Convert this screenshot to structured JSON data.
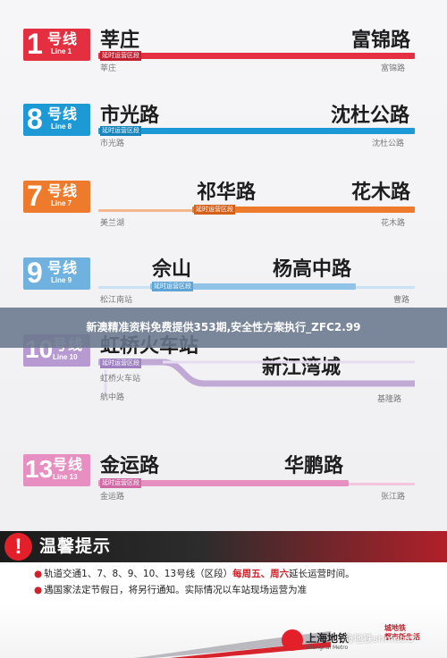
{
  "banner": "新澳精准资料免费提供353期,安全性方案执行_ZFC2.99",
  "lines": [
    {
      "id": "l1",
      "num": "1",
      "hx": "号线",
      "en": "Line 1",
      "color": "#e32f3f",
      "from_big": "莘庄",
      "to_big": "富锦路",
      "tag": "延时运营区段",
      "from_small": "莘庄",
      "to_small": "富锦路"
    },
    {
      "id": "l8",
      "num": "8",
      "hx": "号线",
      "en": "Line 8",
      "color": "#1d9ad6",
      "from_big": "市光路",
      "to_big": "沈杜公路",
      "tag": "延时运营区段",
      "from_small": "市光路",
      "to_small": "沈杜公路"
    },
    {
      "id": "l7",
      "num": "7",
      "hx": "号线",
      "en": "Line 7",
      "color": "#ee7a2c",
      "from_big": "祁华路",
      "to_big": "花木路",
      "tag": "延时运营区段",
      "from_small": "美兰湖",
      "to_small": "花木路"
    },
    {
      "id": "l9",
      "num": "9",
      "hx": "号线",
      "en": "Line 9",
      "color": "#8fc3e8",
      "from_big": "佘山",
      "to_big": "杨高中路",
      "tag": "延时运营区段",
      "from_small": "松江南站",
      "to_small": "曹路"
    },
    {
      "id": "l10",
      "num": "10",
      "hx": "号线",
      "en": "Line 10",
      "color": "#c1a9d6",
      "from_big": "虹桥火车站",
      "to_big": "新江湾城",
      "tag": "延时运营区段",
      "from_small": "虹桥火车站",
      "to_small": "基隆路",
      "branch_small": "航中路"
    },
    {
      "id": "l13",
      "num": "13",
      "hx": "号线",
      "en": "Line 13",
      "color": "#e68fc0",
      "from_big": "金运路",
      "to_big": "华鹏路",
      "tag": "延时运营区段",
      "from_small": "金运路",
      "to_small": "张江路"
    }
  ],
  "notice": {
    "icon": "exclamation-icon",
    "title": "温馨提示",
    "line1_a": "轨道交通1、7、8、9、10、13号线（区段）",
    "line1_hl": "每周五、周六",
    "line1_b": "延长运营时间。",
    "line2": "遇国家法定节假日，将另行通知。实际情况以车站现场运营为准"
  },
  "footer": {
    "logo_text": "上海地铁",
    "logo_sub": "Shanghai Metro",
    "metro_mark_1": "城地铁",
    "metro_mark_2": "都市新生活",
    "watermark": "海地铁shmetro"
  }
}
